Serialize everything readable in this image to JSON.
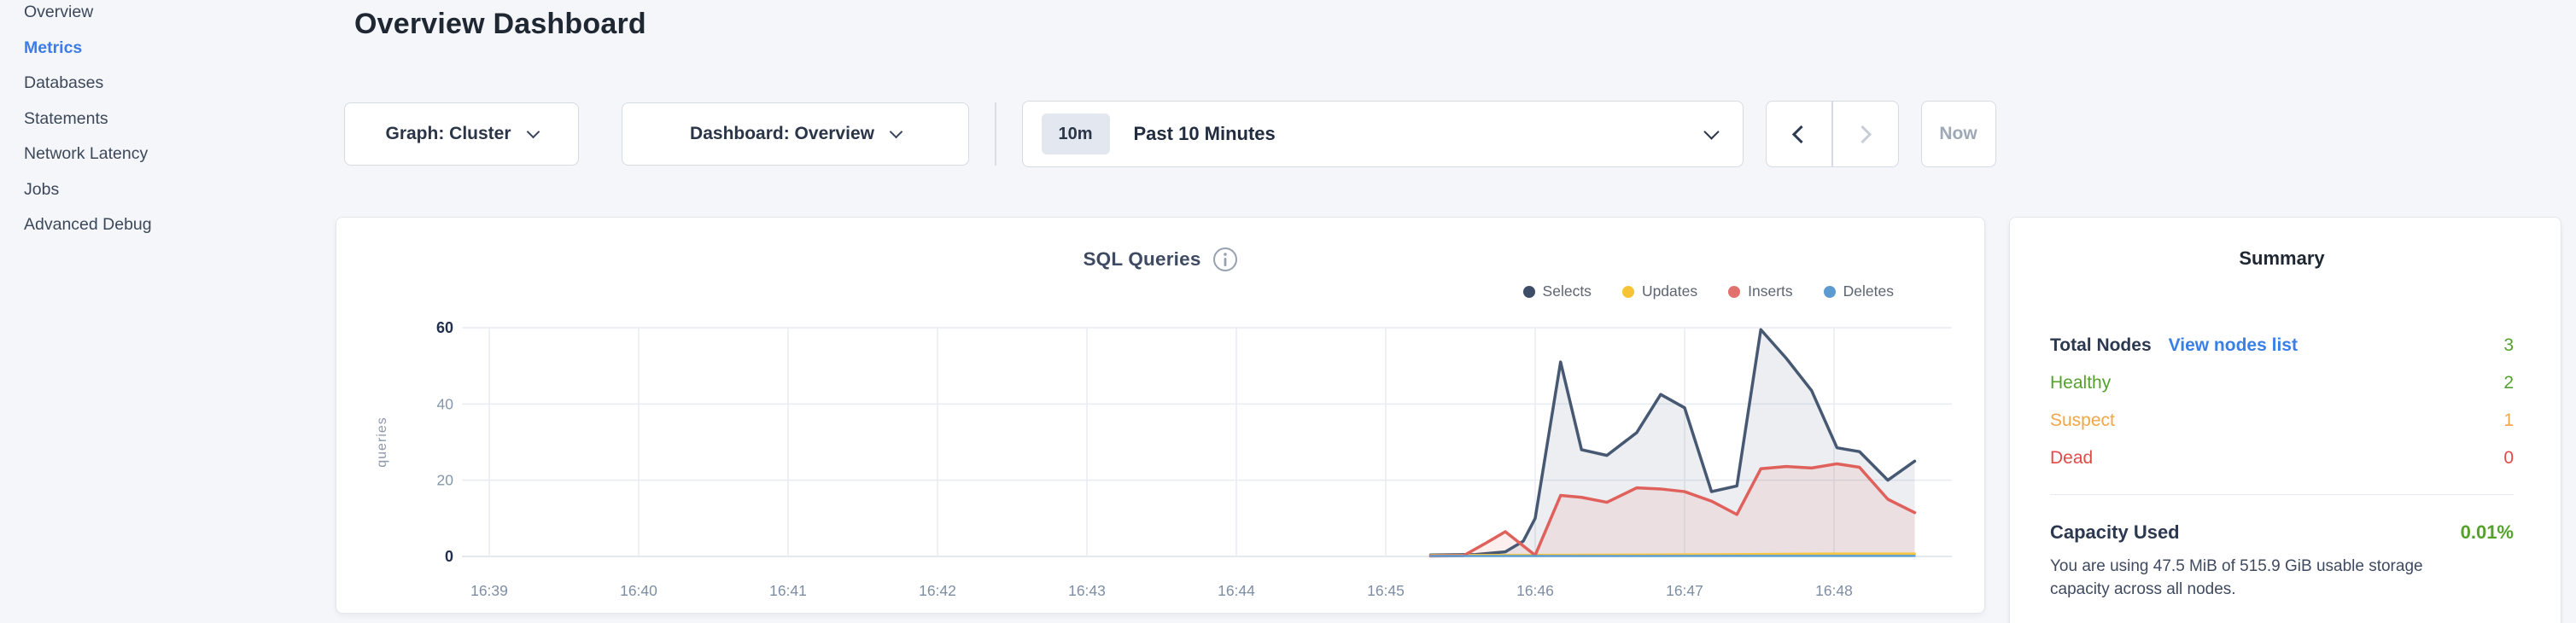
{
  "sidebar": {
    "items": [
      {
        "label": "Overview",
        "active": false
      },
      {
        "label": "Metrics",
        "active": true
      },
      {
        "label": "Databases",
        "active": false
      },
      {
        "label": "Statements",
        "active": false
      },
      {
        "label": "Network Latency",
        "active": false
      },
      {
        "label": "Jobs",
        "active": false
      },
      {
        "label": "Advanced Debug",
        "active": false
      }
    ]
  },
  "header": {
    "title": "Overview Dashboard"
  },
  "controls": {
    "graph_dropdown": "Graph: Cluster",
    "dashboard_dropdown": "Dashboard: Overview",
    "time_badge": "10m",
    "time_label": "Past 10 Minutes",
    "now_label": "Now"
  },
  "icons": {
    "chevron_down": "css-angle-down",
    "chevron_left": "css-angle-left",
    "chevron_right": "css-angle-right",
    "info": "circled-i"
  },
  "chart_data": {
    "type": "area",
    "title": "SQL Queries",
    "ylabel": "queries",
    "grid": true,
    "legend_position": "top-right",
    "x_ticks": [
      "16:39",
      "16:40",
      "16:41",
      "16:42",
      "16:43",
      "16:44",
      "16:45",
      "16:46",
      "16:47",
      "16:48"
    ],
    "y_ticks": [
      0,
      20,
      40,
      60
    ],
    "ylim": [
      0,
      60
    ],
    "x_axis_note": "x values are minutes after 16:39; data visible only from ~16:45.3 to ~16:48.5",
    "series": [
      {
        "name": "Selects",
        "line": "#475872",
        "dot": "#3e4d68",
        "fill": "rgba(71,88,114,0.10)",
        "width": 3.5,
        "points": [
          [
            6.3,
            0.4
          ],
          [
            6.6,
            0.5
          ],
          [
            6.8,
            1.2
          ],
          [
            6.92,
            4
          ],
          [
            7.0,
            10
          ],
          [
            7.17,
            51
          ],
          [
            7.31,
            28
          ],
          [
            7.48,
            26.5
          ],
          [
            7.68,
            32.5
          ],
          [
            7.84,
            42.5
          ],
          [
            8.0,
            39
          ],
          [
            8.18,
            17
          ],
          [
            8.35,
            18.5
          ],
          [
            8.51,
            59.5
          ],
          [
            8.68,
            52
          ],
          [
            8.85,
            43.5
          ],
          [
            9.02,
            28.5
          ],
          [
            9.17,
            27.5
          ],
          [
            9.36,
            20
          ],
          [
            9.54,
            25
          ]
        ]
      },
      {
        "name": "Updates",
        "line": "#f6c643",
        "dot": "#f5c335",
        "fill": null,
        "width": 3,
        "points": [
          [
            6.3,
            0.3
          ],
          [
            7.2,
            0.35
          ],
          [
            8.2,
            0.5
          ],
          [
            9.0,
            0.7
          ],
          [
            9.54,
            0.7
          ]
        ]
      },
      {
        "name": "Inserts",
        "line": "#e0605c",
        "dot": "#e2716d",
        "fill": "rgba(224,96,92,0.10)",
        "width": 3.5,
        "points": [
          [
            6.3,
            0.1
          ],
          [
            6.52,
            0.2
          ],
          [
            6.67,
            3.5
          ],
          [
            6.8,
            6.5
          ],
          [
            7.0,
            0.3
          ],
          [
            7.17,
            16
          ],
          [
            7.31,
            15.5
          ],
          [
            7.48,
            14.2
          ],
          [
            7.68,
            18
          ],
          [
            7.84,
            17.7
          ],
          [
            8.0,
            17
          ],
          [
            8.18,
            14.5
          ],
          [
            8.35,
            11
          ],
          [
            8.51,
            23
          ],
          [
            8.68,
            23.6
          ],
          [
            8.85,
            23.2
          ],
          [
            9.02,
            24.3
          ],
          [
            9.17,
            23.4
          ],
          [
            9.36,
            15
          ],
          [
            9.54,
            11.5
          ]
        ]
      },
      {
        "name": "Deletes",
        "line": "#5c9fd4",
        "dot": "#5b9bd1",
        "fill": null,
        "width": 2.5,
        "points": [
          [
            6.3,
            0.1
          ],
          [
            9.54,
            0.15
          ]
        ]
      }
    ]
  },
  "summary": {
    "title": "Summary",
    "rows": [
      {
        "label": "Total Nodes",
        "label_color": "#2c3850",
        "label_bold": true,
        "link": "View nodes list",
        "link_color": "#3a7fe8",
        "value": "3",
        "value_color": "#55a12e"
      },
      {
        "label": "Healthy",
        "label_color": "#55a12e",
        "label_bold": false,
        "link": null,
        "value": "2",
        "value_color": "#55a12e"
      },
      {
        "label": "Suspect",
        "label_color": "#f2a645",
        "label_bold": false,
        "link": null,
        "value": "1",
        "value_color": "#f2a645"
      },
      {
        "label": "Dead",
        "label_color": "#e04a48",
        "label_bold": false,
        "link": null,
        "value": "0",
        "value_color": "#e04a48"
      }
    ],
    "capacity_label": "Capacity Used",
    "capacity_value": "0.01%",
    "capacity_color": "#55a12e",
    "footnote_line1": "You are using 47.5 MiB of 515.9 GiB usable storage",
    "footnote_line2": "capacity across all nodes."
  },
  "colors": {
    "page_bg": "#f4f6fa",
    "active_nav": "#3d7ce8",
    "grid": "#e8ecf2",
    "baseline": "#dce2ea"
  }
}
